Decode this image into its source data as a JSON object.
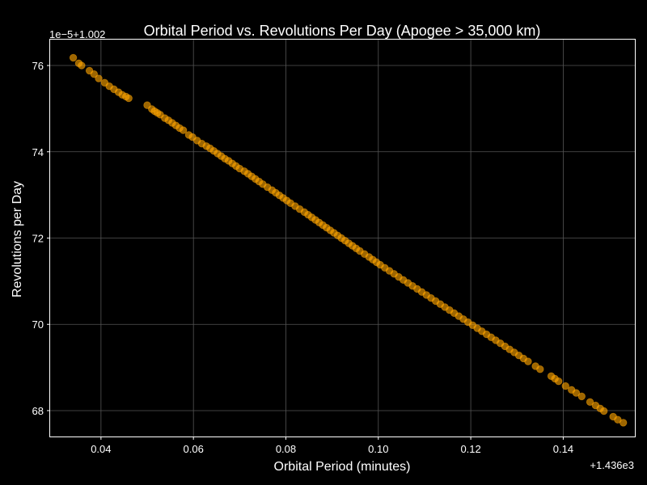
{
  "chart_data": {
    "type": "scatter",
    "title": "Orbital Period vs. Revolutions Per Day (Apogee > 35,000 km)",
    "xlabel": "Orbital Period (minutes)",
    "ylabel": "Revolutions per Day",
    "x_offset_label": "+1.436e3",
    "y_offset_label": "1e−5+1.002",
    "xlim": [
      0.029,
      0.1555
    ],
    "ylim": [
      67.4,
      76.6
    ],
    "x_ticks": [
      0.04,
      0.06,
      0.08,
      0.1,
      0.12,
      0.14
    ],
    "x_tick_labels": [
      "0.04",
      "0.06",
      "0.08",
      "0.10",
      "0.12",
      "0.14"
    ],
    "y_ticks": [
      68,
      70,
      72,
      74,
      76
    ],
    "y_tick_labels": [
      "68",
      "70",
      "72",
      "74",
      "76"
    ],
    "grid": true,
    "colors": {
      "background": "#000000",
      "marker": "#ffa500",
      "text": "#ffffff",
      "grid": "#555555"
    },
    "x": [
      0.034,
      0.0352,
      0.0358,
      0.0375,
      0.0385,
      0.0395,
      0.0408,
      0.0418,
      0.0428,
      0.0438,
      0.0446,
      0.0454,
      0.046,
      0.05,
      0.051,
      0.0516,
      0.0522,
      0.0528,
      0.0538,
      0.0546,
      0.0554,
      0.0562,
      0.057,
      0.0578,
      0.059,
      0.0598,
      0.0608,
      0.0618,
      0.0628,
      0.0636,
      0.0644,
      0.0652,
      0.066,
      0.0668,
      0.0676,
      0.0684,
      0.0692,
      0.07,
      0.071,
      0.0718,
      0.0726,
      0.0734,
      0.0742,
      0.075,
      0.076,
      0.077,
      0.0778,
      0.0786,
      0.0794,
      0.0802,
      0.081,
      0.082,
      0.083,
      0.084,
      0.0848,
      0.0856,
      0.0864,
      0.0872,
      0.088,
      0.0888,
      0.0896,
      0.0904,
      0.0912,
      0.092,
      0.0928,
      0.0936,
      0.0944,
      0.0952,
      0.096,
      0.097,
      0.098,
      0.0988,
      0.0996,
      0.1004,
      0.1014,
      0.1024,
      0.1034,
      0.1044,
      0.1054,
      0.1064,
      0.1074,
      0.1084,
      0.1094,
      0.1104,
      0.1114,
      0.1124,
      0.1134,
      0.1144,
      0.1154,
      0.1164,
      0.1174,
      0.1184,
      0.1194,
      0.1204,
      0.1214,
      0.1224,
      0.1234,
      0.1244,
      0.1254,
      0.1264,
      0.1274,
      0.1284,
      0.1294,
      0.1304,
      0.1314,
      0.1324,
      0.134,
      0.135,
      0.1374,
      0.1382,
      0.139,
      0.1405,
      0.1418,
      0.1428,
      0.144,
      0.1458,
      0.147,
      0.148,
      0.1488,
      0.1508,
      0.1518,
      0.153
    ],
    "y": [
      76.18,
      76.05,
      76.0,
      75.88,
      75.8,
      75.7,
      75.6,
      75.52,
      75.45,
      75.38,
      75.32,
      75.28,
      75.24,
      75.08,
      74.99,
      74.94,
      74.9,
      74.86,
      74.78,
      74.73,
      74.67,
      74.61,
      74.55,
      74.5,
      74.39,
      74.34,
      74.26,
      74.19,
      74.13,
      74.08,
      74.02,
      73.96,
      73.9,
      73.84,
      73.79,
      73.73,
      73.67,
      73.61,
      73.55,
      73.49,
      73.43,
      73.37,
      73.31,
      73.25,
      73.18,
      73.11,
      73.05,
      72.99,
      72.93,
      72.87,
      72.81,
      72.74,
      72.67,
      72.6,
      72.54,
      72.48,
      72.42,
      72.36,
      72.3,
      72.24,
      72.18,
      72.12,
      72.06,
      72.0,
      71.94,
      71.88,
      71.82,
      71.76,
      71.7,
      71.63,
      71.56,
      71.5,
      71.44,
      71.38,
      71.31,
      71.24,
      71.17,
      71.1,
      71.03,
      70.96,
      70.89,
      70.82,
      70.75,
      70.68,
      70.61,
      70.54,
      70.47,
      70.4,
      70.33,
      70.26,
      70.19,
      70.12,
      70.05,
      69.98,
      69.91,
      69.84,
      69.77,
      69.7,
      69.63,
      69.56,
      69.49,
      69.42,
      69.35,
      69.28,
      69.21,
      69.14,
      69.03,
      68.96,
      68.8,
      68.74,
      68.68,
      68.57,
      68.48,
      68.41,
      68.33,
      68.2,
      68.12,
      68.05,
      67.99,
      67.86,
      67.79,
      67.72
    ]
  }
}
